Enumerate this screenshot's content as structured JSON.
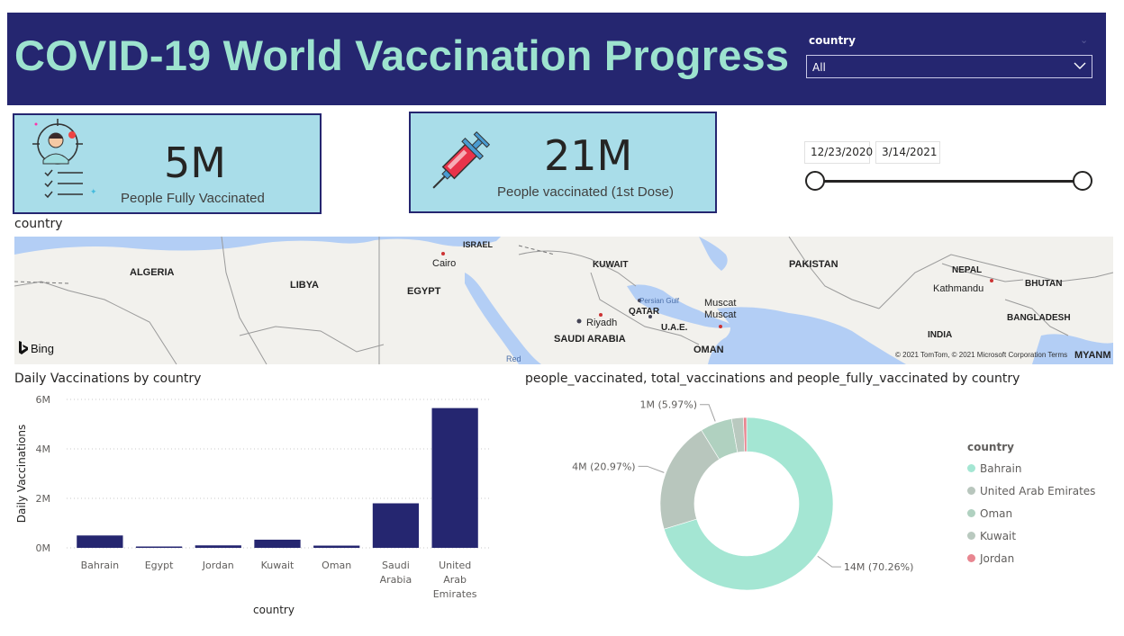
{
  "header": {
    "title": "COVID-19 World Vaccination Progress",
    "slicer_label": "country",
    "slicer_value": "All"
  },
  "kpis": {
    "fully_vaccinated": {
      "value": "5M",
      "label": "People Fully Vaccinated"
    },
    "first_dose": {
      "value": "21M",
      "label": "People vaccinated (1st Dose)"
    }
  },
  "date_slicer": {
    "start": "12/23/2020",
    "end": "3/14/2021"
  },
  "map": {
    "title": "country",
    "countries": [
      "ALGERIA",
      "LIBYA",
      "EGYPT",
      "ISRAEL",
      "KUWAIT",
      "QATAR",
      "U.A.E.",
      "SAUDI ARABIA",
      "OMAN",
      "PAKISTAN",
      "NEPAL",
      "BHUTAN",
      "BANGLADESH",
      "INDIA",
      "MYANM"
    ],
    "cities": [
      "Cairo",
      "Riyadh",
      "Muscat",
      "Muscat",
      "Kathmandu"
    ],
    "water": [
      "Persian Gulf",
      "Red"
    ],
    "provider": "Bing",
    "attribution": "© 2021 TomTom, © 2021 Microsoft Corporation  Terms"
  },
  "colors": {
    "header_bg": "#252670",
    "title_text": "#9de3cf",
    "card_bg": "#a9dde9",
    "bar": "#252670"
  },
  "chart_data": [
    {
      "type": "bar",
      "title": "Daily Vaccinations by country",
      "xlabel": "country",
      "ylabel": "Daily Vaccinations",
      "categories": [
        "Bahrain",
        "Egypt",
        "Jordan",
        "Kuwait",
        "Oman",
        "Saudi Arabia",
        "United Arab Emirates"
      ],
      "category_lines": [
        [
          "Bahrain"
        ],
        [
          "Egypt"
        ],
        [
          "Jordan"
        ],
        [
          "Kuwait"
        ],
        [
          "Oman"
        ],
        [
          "Saudi",
          "Arabia"
        ],
        [
          "United",
          "Arab",
          "Emirates"
        ]
      ],
      "values": [
        500000,
        30000,
        100000,
        330000,
        90000,
        1800000,
        5650000
      ],
      "ylim": [
        0,
        6000000
      ],
      "yticks": [
        {
          "v": 0,
          "label": "0M"
        },
        {
          "v": 2000000,
          "label": "2M"
        },
        {
          "v": 4000000,
          "label": "4M"
        },
        {
          "v": 6000000,
          "label": "6M"
        }
      ],
      "grid": true
    },
    {
      "type": "pie",
      "title": "people_vaccinated, total_vaccinations and people_fully_vaccinated by country",
      "legend_title": "country",
      "legend_position": "right",
      "slices": [
        {
          "name": "Bahrain",
          "value": 70.26,
          "label": "14M (70.26%)",
          "color": "#a4e6d3"
        },
        {
          "name": "United Arab Emirates",
          "value": 20.97,
          "label": "4M (20.97%)",
          "color": "#b8c6bd"
        },
        {
          "name": "Oman",
          "value": 5.97,
          "label": "1M (5.97%)",
          "color": "#b0d1c0"
        },
        {
          "name": "Kuwait",
          "value": 2.2,
          "label": "",
          "color": "#b9c9bf"
        },
        {
          "name": "Jordan",
          "value": 0.6,
          "label": "",
          "color": "#e88690"
        }
      ]
    }
  ]
}
